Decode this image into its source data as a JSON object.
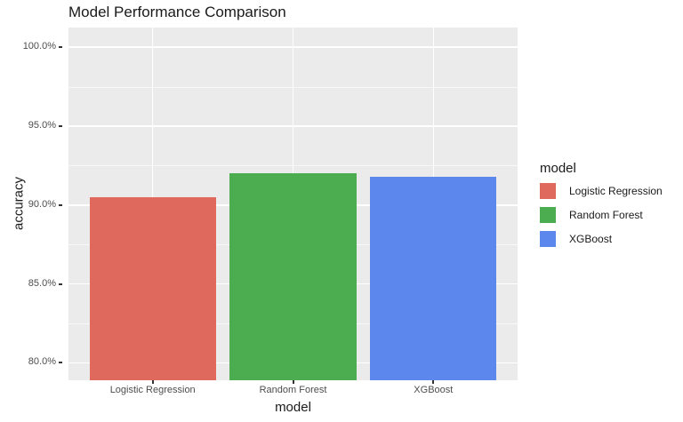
{
  "chart_data": {
    "type": "bar",
    "title": "Model Performance Comparison",
    "xlabel": "model",
    "ylabel": "accuracy",
    "categories": [
      "Logistic Regression",
      "Random Forest",
      "XGBoost"
    ],
    "values": [
      90.5,
      92.0,
      91.8
    ],
    "value_unit": "percent",
    "ylim": [
      78.9,
      101.25
    ],
    "yticks_major": [
      80,
      85,
      90,
      95,
      100
    ],
    "ytick_labels": [
      "80.0%",
      "85.0%",
      "90.0%",
      "95.0%",
      "100.0%"
    ],
    "yticks_minor": [
      82.5,
      87.5,
      92.5,
      97.5
    ],
    "bar_colors": [
      "#E0695E",
      "#4CAD50",
      "#5C87ED"
    ],
    "grid": true,
    "legend_position": "right",
    "panel_background": "#EBEBEB",
    "gridline_color": "#FFFFFF"
  },
  "legend": {
    "title": "model",
    "items": [
      {
        "label": "Logistic Regression",
        "color": "#E0695E"
      },
      {
        "label": "Random Forest",
        "color": "#4CAD50"
      },
      {
        "label": "XGBoost",
        "color": "#5C87ED"
      }
    ]
  }
}
